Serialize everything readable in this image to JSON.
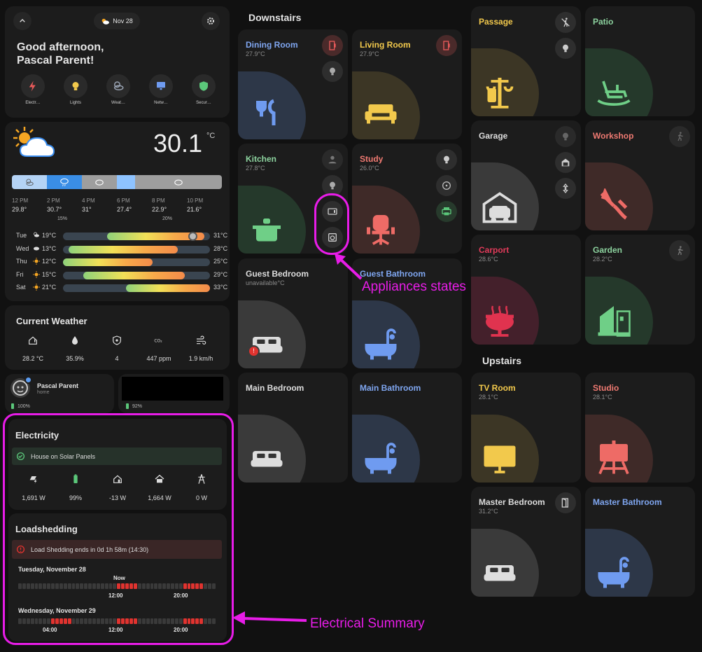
{
  "header": {
    "date": "Nov 28",
    "greeting_line1": "Good afternoon,",
    "greeting_line2": "Pascal Parent!"
  },
  "chips": [
    {
      "label": "Electr…",
      "icon": "lightning-icon",
      "color": "#e85a5a"
    },
    {
      "label": "Lights",
      "icon": "bulb-icon",
      "color": "#f2c94c"
    },
    {
      "label": "Weat…",
      "icon": "weather-icon",
      "color": "#9aa4b4"
    },
    {
      "label": "Netw…",
      "icon": "monitor-icon",
      "color": "#6f9bf0"
    },
    {
      "label": "Secur…",
      "icon": "shield-icon",
      "color": "#5bc77a"
    }
  ],
  "weather": {
    "temp": "30.1",
    "unit": "°C",
    "hourly": [
      {
        "time": "12 PM",
        "temp": "29.8°",
        "precip": ""
      },
      {
        "time": "2 PM",
        "temp": "30.7°",
        "precip": "15%"
      },
      {
        "time": "4 PM",
        "temp": "31°",
        "precip": ""
      },
      {
        "time": "6 PM",
        "temp": "27.4°",
        "precip": ""
      },
      {
        "time": "8 PM",
        "temp": "22.9°",
        "precip": "20%"
      },
      {
        "time": "10 PM",
        "temp": "21.6°",
        "precip": ""
      }
    ],
    "daily": [
      {
        "day": "Tue",
        "low": "19°C",
        "high": "31°C",
        "icon": "partly-cloudy-night-icon"
      },
      {
        "day": "Wed",
        "low": "13°C",
        "high": "28°C",
        "icon": "cloud-icon"
      },
      {
        "day": "Thu",
        "low": "12°C",
        "high": "25°C",
        "icon": "sun-icon"
      },
      {
        "day": "Fri",
        "low": "15°C",
        "high": "29°C",
        "icon": "sun-icon"
      },
      {
        "day": "Sat",
        "low": "21°C",
        "high": "33°C",
        "icon": "sun-icon"
      }
    ]
  },
  "current_weather": {
    "title": "Current Weather",
    "items": [
      {
        "icon": "home-thermometer-icon",
        "value": "28.2 °C"
      },
      {
        "icon": "water-drop-icon",
        "value": "35.9%"
      },
      {
        "icon": "uv-shield-icon",
        "value": "4"
      },
      {
        "icon": "co2-icon",
        "value": "447 ppm"
      },
      {
        "icon": "wind-icon",
        "value": "1.9 km/h"
      }
    ]
  },
  "person": {
    "name": "Pascal Parent",
    "location": "home",
    "battery1": "100%",
    "battery2": "92%"
  },
  "electricity": {
    "title": "Electricity",
    "status": "House on Solar Panels",
    "items": [
      {
        "icon": "solar-icon",
        "value": "1,691 W"
      },
      {
        "icon": "battery-icon",
        "value": "99%"
      },
      {
        "icon": "home-battery-icon",
        "value": "-13 W"
      },
      {
        "icon": "home-import-icon",
        "value": "1,664 W"
      },
      {
        "icon": "pylon-icon",
        "value": "0 W"
      }
    ]
  },
  "loadshedding": {
    "title": "Loadshedding",
    "alert": "Load Shedding ends in 0d 1h 58m (14:30)",
    "day1": "Tuesday, November 28",
    "day1_now": "Now",
    "day1_ticks": [
      "12:00",
      "20:00"
    ],
    "day2": "Wednesday, November 29",
    "day2_ticks": [
      "04:00",
      "12:00",
      "20:00"
    ]
  },
  "sections": {
    "downstairs": "Downstairs",
    "upstairs": "Upstairs"
  },
  "rooms": {
    "dining_room": {
      "name": "Dining Room",
      "temp": "27.9°C"
    },
    "living_room": {
      "name": "Living Room",
      "temp": "27.9°C"
    },
    "kitchen": {
      "name": "Kitchen",
      "temp": "27.8°C"
    },
    "study": {
      "name": "Study",
      "temp": "26.0°C"
    },
    "guest_bedroom": {
      "name": "Guest Bedroom",
      "temp": "unavailable°C"
    },
    "guest_bathroom": {
      "name": "Guest Bathroom",
      "temp": ""
    },
    "main_bedroom": {
      "name": "Main Bedroom",
      "temp": ""
    },
    "main_bathroom": {
      "name": "Main Bathroom",
      "temp": ""
    },
    "passage": {
      "name": "Passage",
      "temp": ""
    },
    "patio": {
      "name": "Patio",
      "temp": ""
    },
    "garage": {
      "name": "Garage",
      "temp": ""
    },
    "workshop": {
      "name": "Workshop",
      "temp": ""
    },
    "carport": {
      "name": "Carport",
      "temp": "28.6°C"
    },
    "garden": {
      "name": "Garden",
      "temp": "28.2°C"
    },
    "tv_room": {
      "name": "TV Room",
      "temp": "28.1°C"
    },
    "studio": {
      "name": "Studio",
      "temp": "28.1°C"
    },
    "master_bedroom": {
      "name": "Master Bedroom",
      "temp": "31.2°C"
    },
    "master_bathroom": {
      "name": "Master Bathroom",
      "temp": ""
    }
  },
  "annotations": {
    "appliances": "Appliances states",
    "electrical": "Electrical Summary"
  },
  "colors": {
    "accent_annotation": "#e81ce8",
    "red": "#e0332f",
    "yellow": "#f2c94c",
    "blue": "#6f9bf0",
    "green": "#5bc77a"
  }
}
